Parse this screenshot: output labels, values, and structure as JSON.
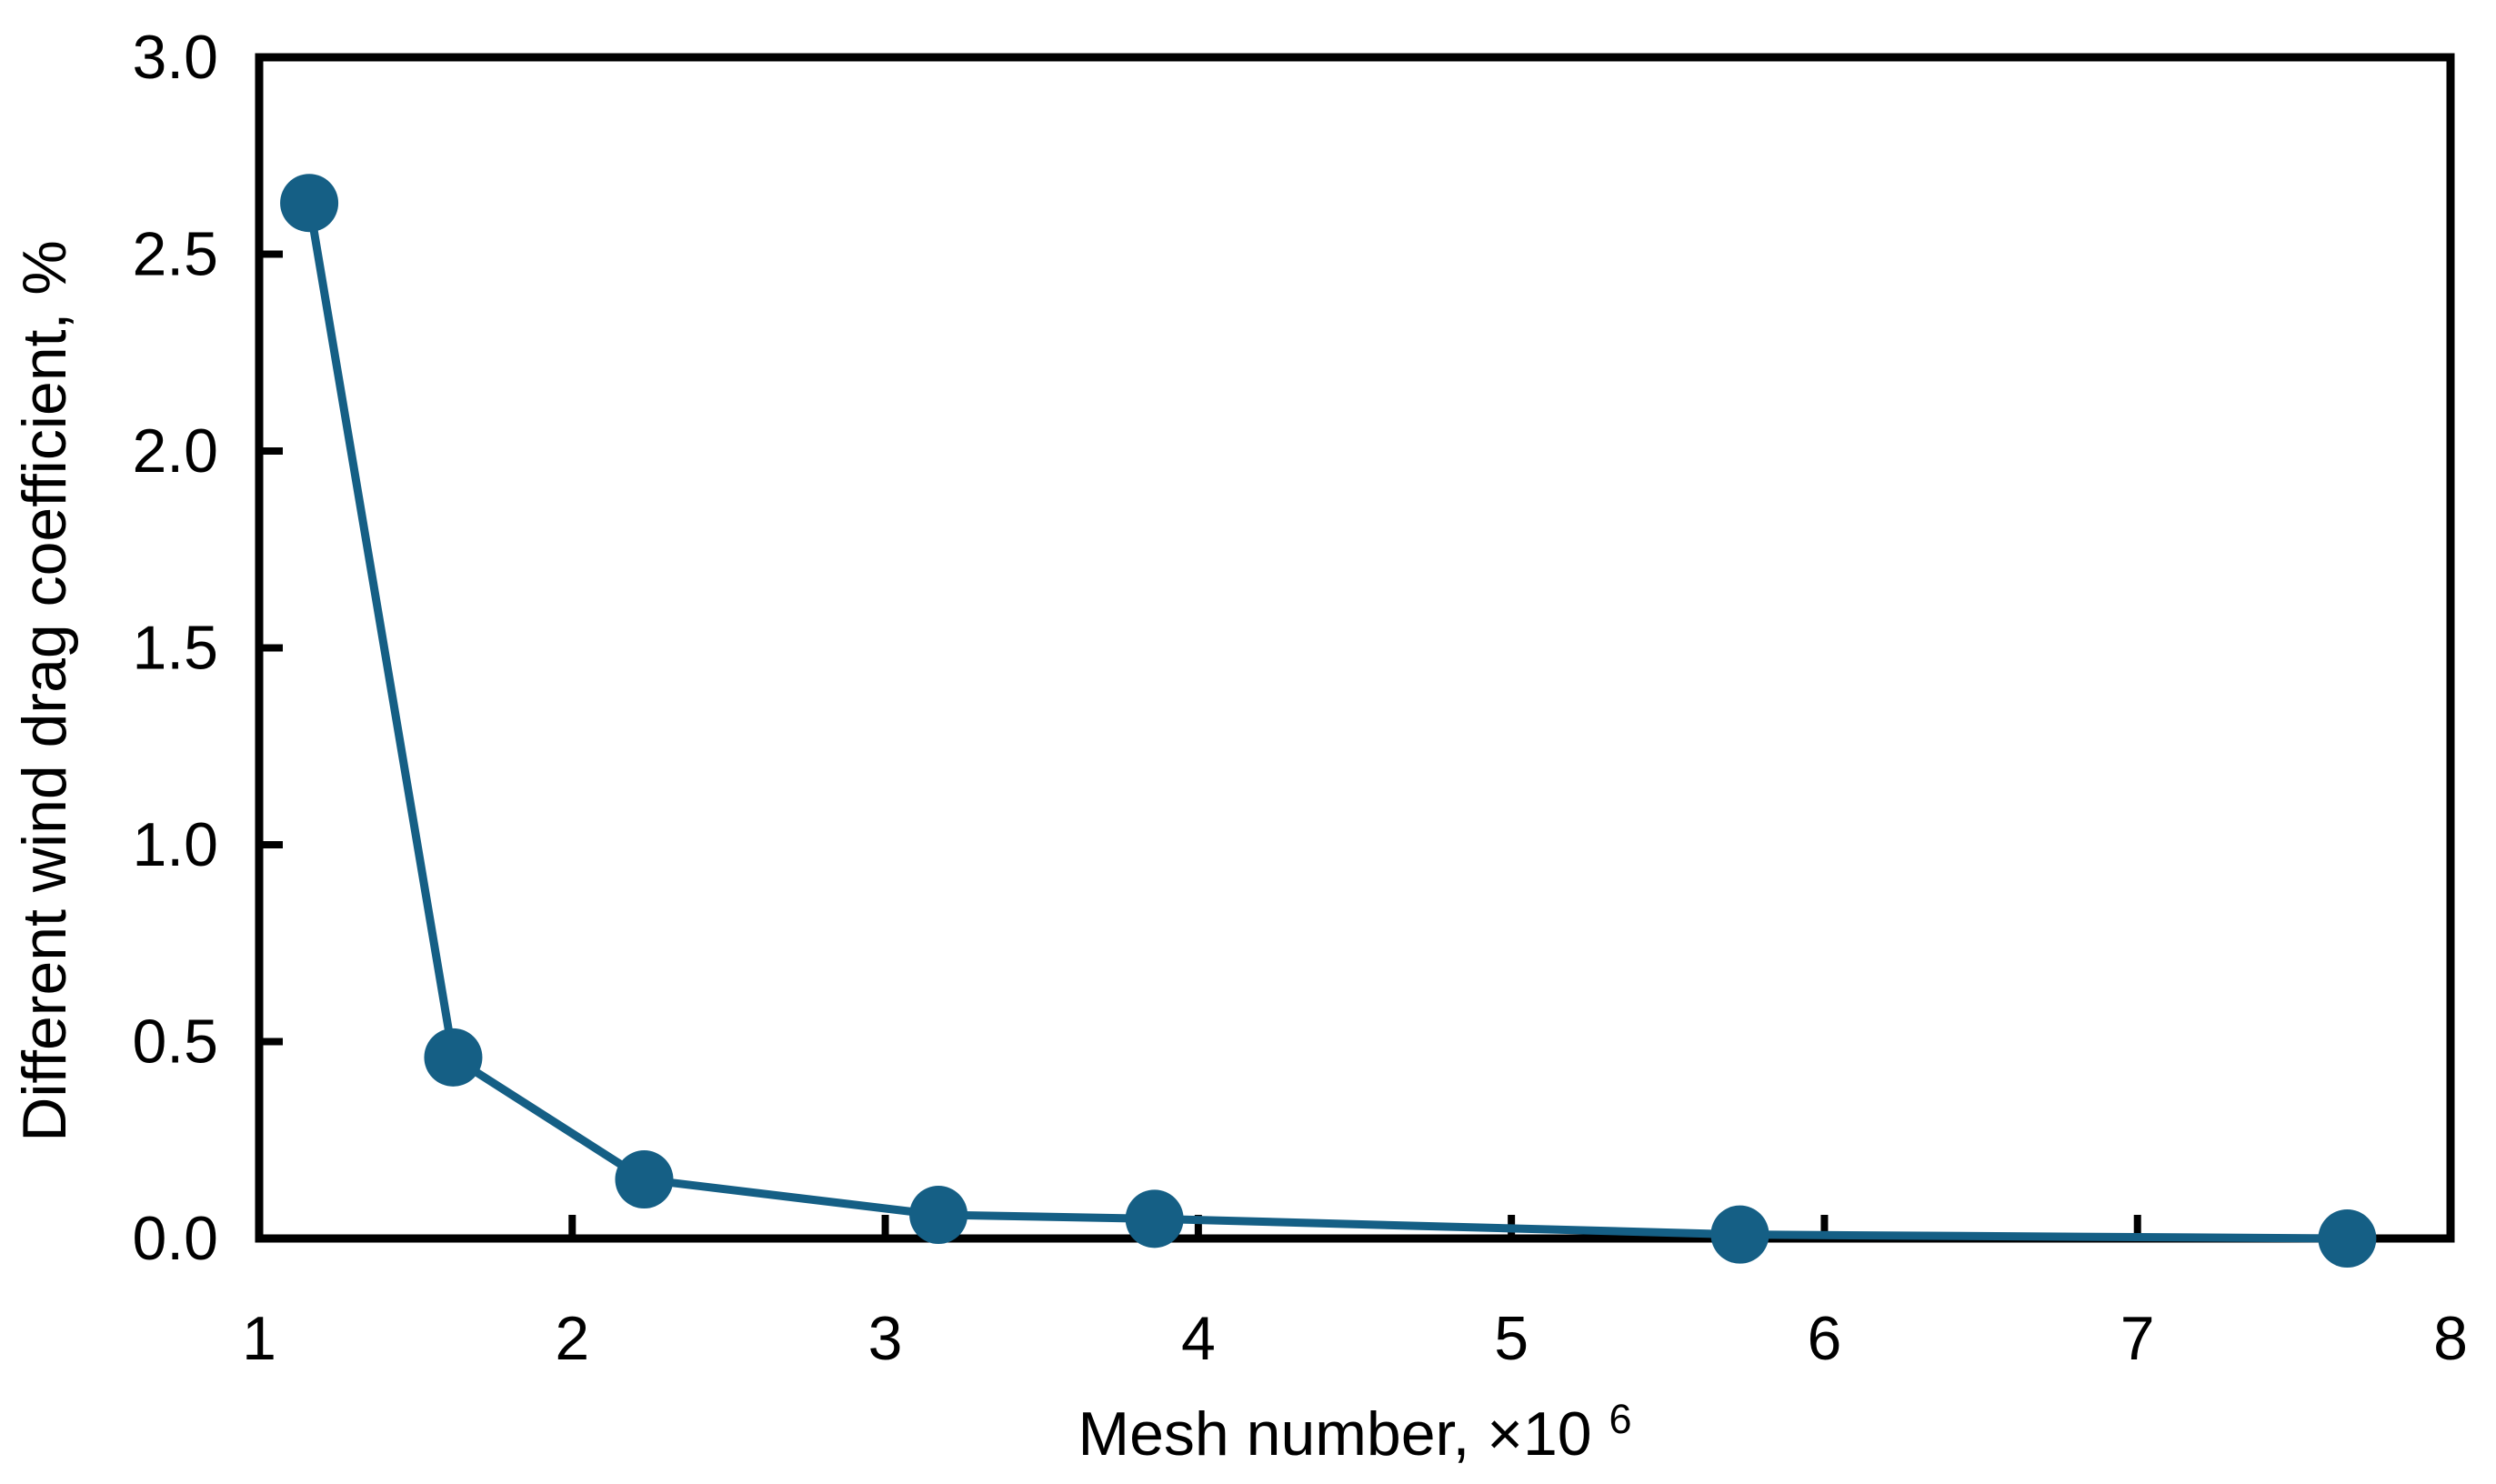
{
  "chart_data": {
    "type": "line",
    "title": "",
    "xlabel": "Mesh number, ×10",
    "xlabel_superscript": "6",
    "ylabel": "Different wind drag coefficient, %",
    "series": [
      {
        "name": "Different wind drag coefficient",
        "x": [
          1.16,
          1.62,
          2.23,
          3.17,
          3.86,
          5.73,
          7.67
        ],
        "y": [
          2.63,
          0.46,
          0.15,
          0.06,
          0.05,
          0.01,
          0.0
        ]
      }
    ],
    "xlim": [
      1,
      8
    ],
    "ylim": [
      0,
      3
    ],
    "x_tick_values": [
      1,
      2,
      3,
      4,
      5,
      6,
      7,
      8
    ],
    "x_tick_labels": [
      "1",
      "2",
      "3",
      "4",
      "5",
      "6",
      "7",
      "8"
    ],
    "y_tick_values": [
      0,
      0.5,
      1,
      1.5,
      2,
      2.5,
      3
    ],
    "y_tick_labels": [
      "0.0",
      "0.5",
      "1.0",
      "1.5",
      "2.0",
      "2.5",
      "3.0"
    ],
    "grid": false,
    "legend": "none",
    "marker_style": "filled-circle",
    "line_color": "#155f85",
    "marker_color": "#155f85",
    "axis_color": "#000000",
    "text_color": "#000000",
    "background": "#ffffff"
  }
}
